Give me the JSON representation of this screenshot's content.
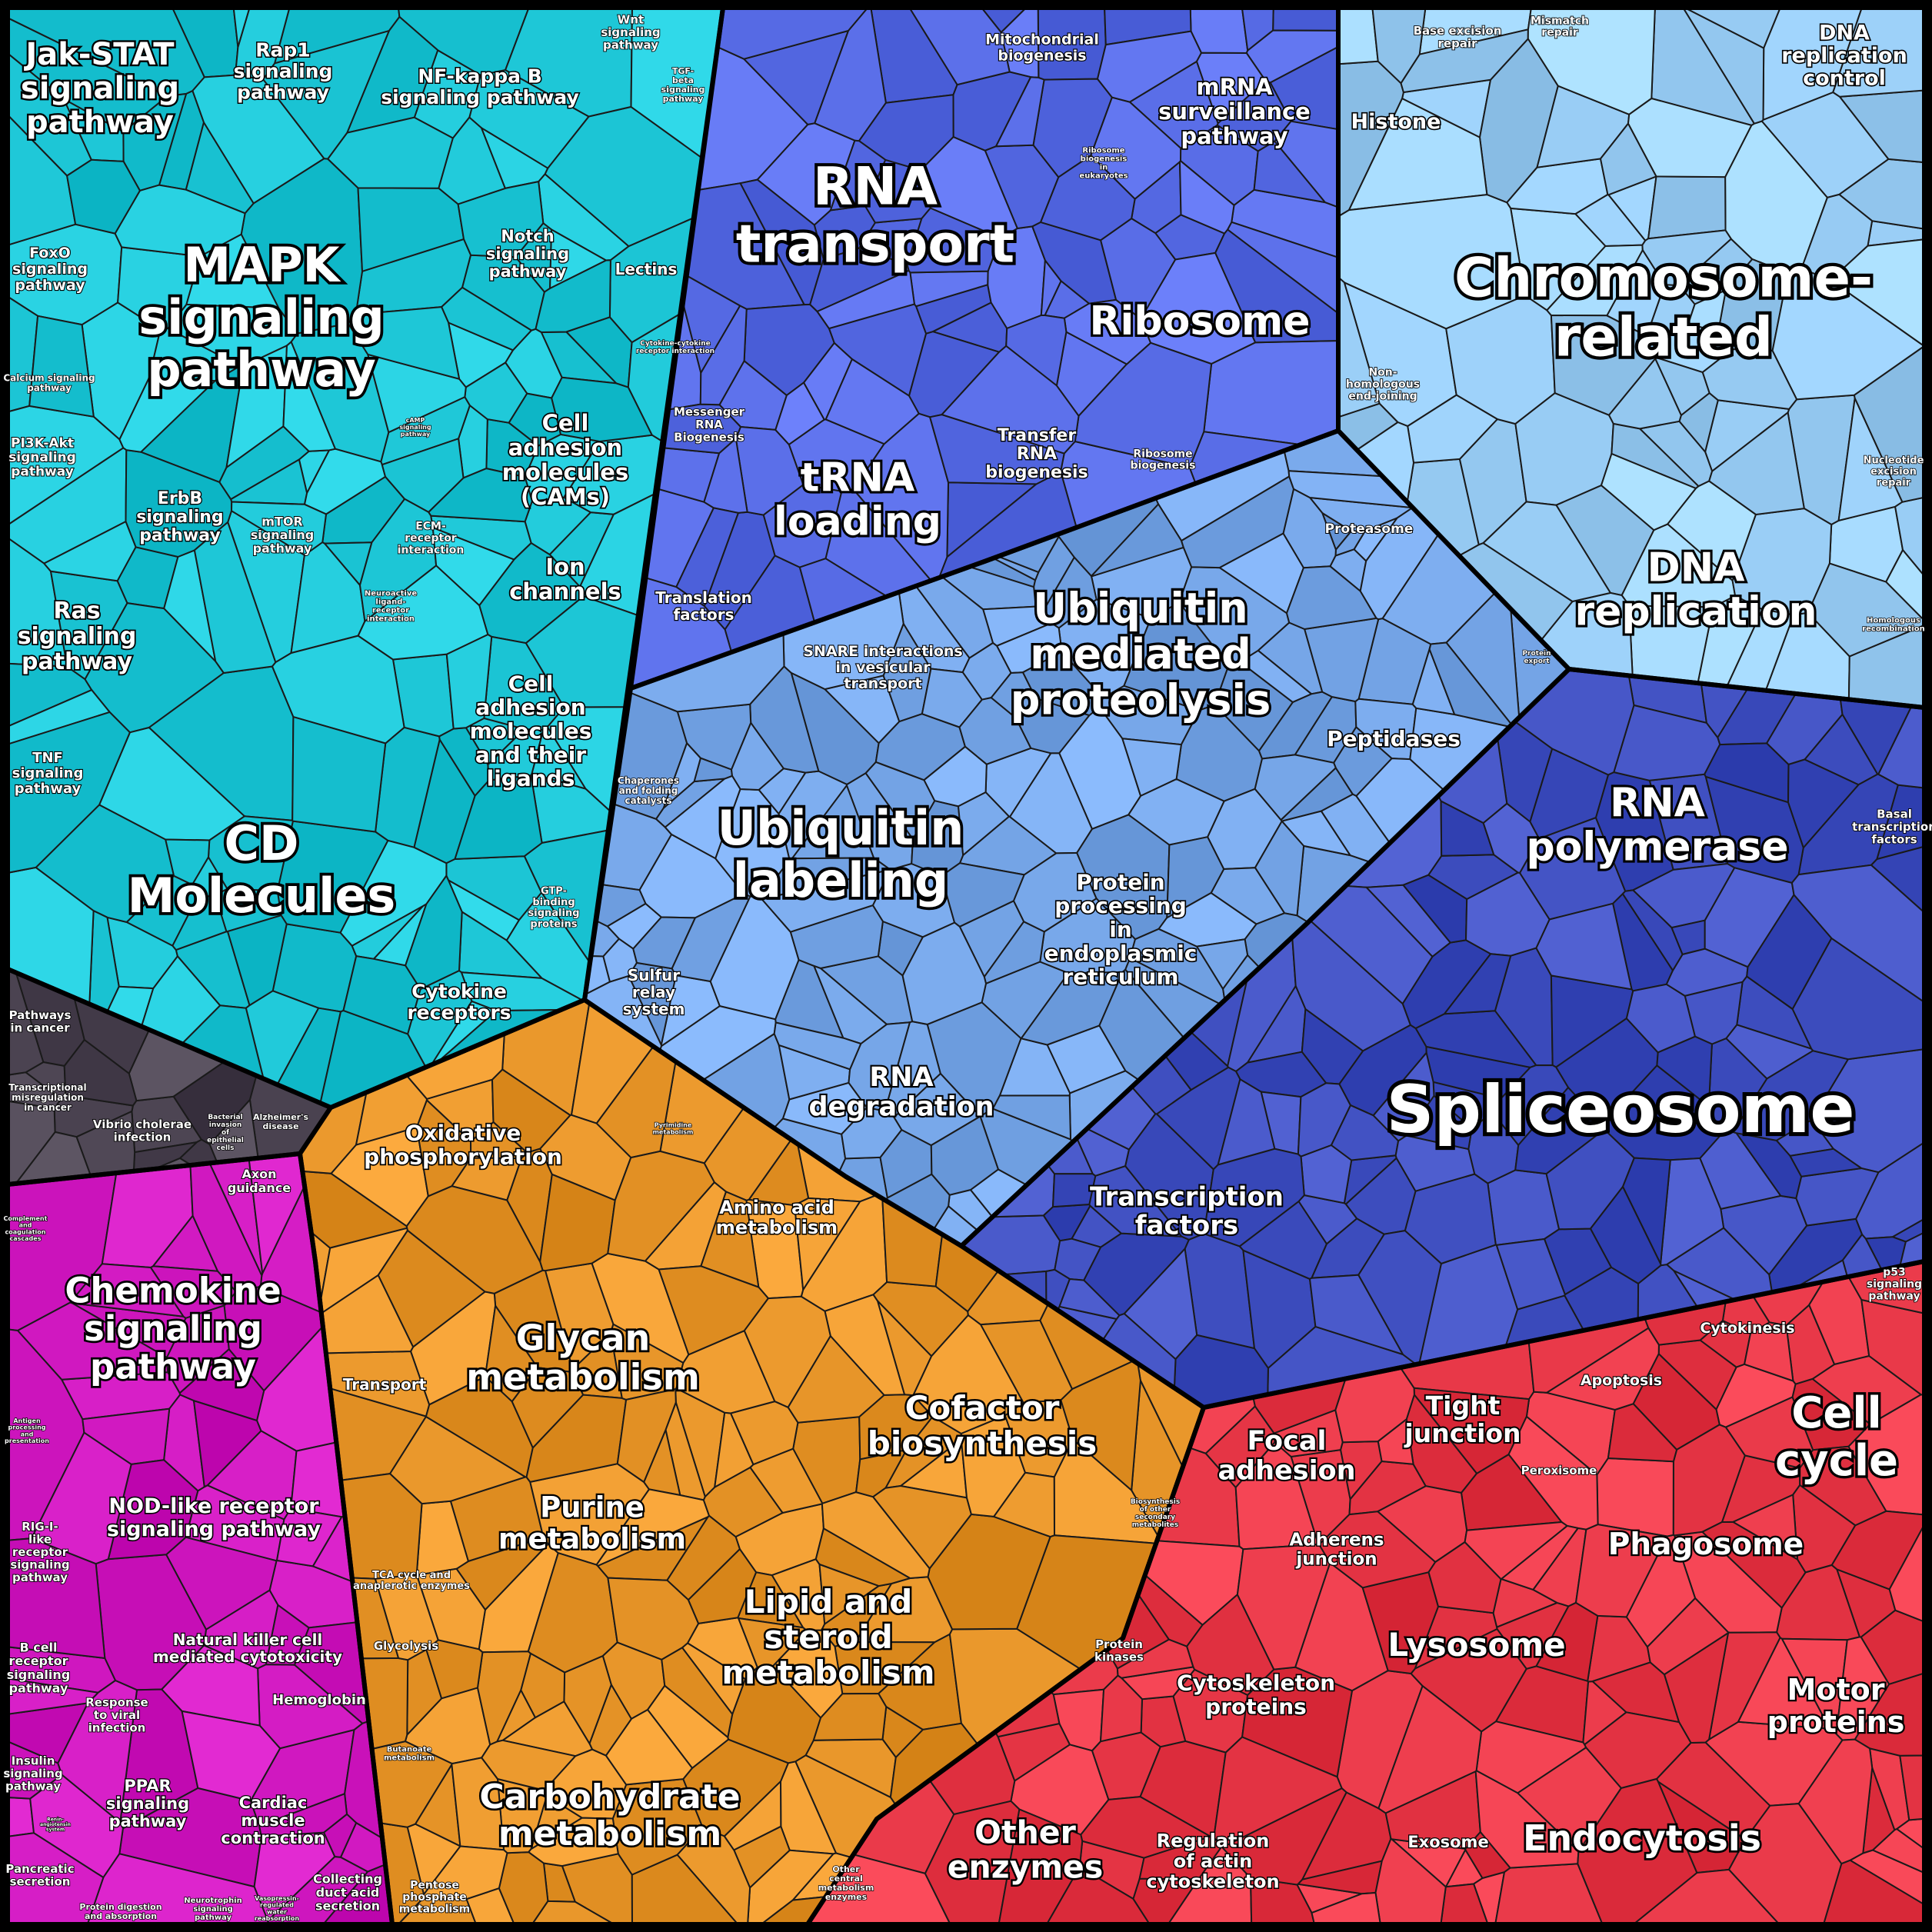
{
  "groups": [
    {
      "id": "signaling",
      "color": "#1fc8d8"
    },
    {
      "id": "rna",
      "color": "#5a6ee8"
    },
    {
      "id": "chromosome",
      "color": "#9cd0f8"
    },
    {
      "id": "protein",
      "color": "#78a8ea"
    },
    {
      "id": "transcription",
      "color": "#3f4fc0"
    },
    {
      "id": "disease",
      "color": "#4a4250"
    },
    {
      "id": "immune",
      "color": "#d018c0"
    },
    {
      "id": "metabolism",
      "color": "#e8962a"
    },
    {
      "id": "cellular",
      "color": "#e83848"
    }
  ],
  "labels": [
    {
      "id": "jak-stat",
      "text": "Jak-STAT\nsignaling\npathway"
    },
    {
      "id": "rap1",
      "text": "Rap1\nsignaling\npathway"
    },
    {
      "id": "nfkb",
      "text": "NF-kappa B\nsignaling pathway"
    },
    {
      "id": "wnt",
      "text": "Wnt\nsignaling\npathway"
    },
    {
      "id": "tgf",
      "text": "TGF-\nbeta\nsignaling\npathway"
    },
    {
      "id": "foxo",
      "text": "FoxO\nsignaling\npathway"
    },
    {
      "id": "mapk",
      "text": "MAPK\nsignaling\npathway"
    },
    {
      "id": "notch",
      "text": "Notch\nsignaling\npathway"
    },
    {
      "id": "lectins",
      "text": "Lectins"
    },
    {
      "id": "calcium",
      "text": "Calcium signaling\npathway"
    },
    {
      "id": "cytokine-cytokine",
      "text": "Cytokine-cytokine\nreceptor interaction"
    },
    {
      "id": "pi3k",
      "text": "PI3K-Akt\nsignaling\npathway"
    },
    {
      "id": "camp",
      "text": "cAMP\nsignaling\npathway"
    },
    {
      "id": "cams",
      "text": "Cell\nadhesion\nmolecules\n(CAMs)"
    },
    {
      "id": "erbb",
      "text": "ErbB\nsignaling\npathway"
    },
    {
      "id": "mtor",
      "text": "mTOR\nsignaling\npathway"
    },
    {
      "id": "ecm",
      "text": "ECM-\nreceptor\ninteraction"
    },
    {
      "id": "ras",
      "text": "Ras\nsignaling\npathway"
    },
    {
      "id": "ion",
      "text": "Ion\nchannels"
    },
    {
      "id": "neuroactive",
      "text": "Neuroactive\nligand-\nreceptor\ninteraction"
    },
    {
      "id": "cam-ligands",
      "text": "Cell\nadhesion\nmolecules\nand their\nligands"
    },
    {
      "id": "tnf",
      "text": "TNF\nsignaling\npathway"
    },
    {
      "id": "cd",
      "text": "CD\nMolecules"
    },
    {
      "id": "gtp",
      "text": "GTP-\nbinding\nsignaling\nproteins"
    },
    {
      "id": "cytokine-receptors",
      "text": "Cytokine\nreceptors"
    },
    {
      "id": "pathways-cancer",
      "text": "Pathways\nin cancer"
    },
    {
      "id": "transcriptional-misreg",
      "text": "Transcriptional\nmisregulation\nin cancer"
    },
    {
      "id": "cholerae",
      "text": "Vibrio cholerae\ninfection"
    },
    {
      "id": "bacterial",
      "text": "Bacterial\ninvasion\nof\nepithelial\ncells"
    },
    {
      "id": "alzheimer",
      "text": "Alzheimer's\ndisease"
    },
    {
      "id": "mito",
      "text": "Mitochondrial\nbiogenesis"
    },
    {
      "id": "rna-transport",
      "text": "RNA\ntransport"
    },
    {
      "id": "mrna-surv",
      "text": "mRNA\nsurveillance\npathway"
    },
    {
      "id": "ribo-bio-euk",
      "text": "Ribosome\nbiogenesis\nin\neukaryotes"
    },
    {
      "id": "ribosome",
      "text": "Ribosome"
    },
    {
      "id": "messenger",
      "text": "Messenger\nRNA\nBiogenesis"
    },
    {
      "id": "trna",
      "text": "tRNA\nloading"
    },
    {
      "id": "transfer-rna",
      "text": "Transfer\nRNA\nbiogenesis"
    },
    {
      "id": "ribo-bio",
      "text": "Ribosome\nbiogenesis"
    },
    {
      "id": "translation",
      "text": "Translation\nfactors"
    },
    {
      "id": "base-excision",
      "text": "Base excision\nrepair"
    },
    {
      "id": "mismatch",
      "text": "Mismatch\nrepair"
    },
    {
      "id": "dna-rep-control",
      "text": "DNA\nreplication\ncontrol"
    },
    {
      "id": "histone",
      "text": "Histone"
    },
    {
      "id": "chromosome-related",
      "text": "Chromosome-\nrelated"
    },
    {
      "id": "nhej",
      "text": "Non-\nhomologous\nend-joining"
    },
    {
      "id": "nucleotide-excision",
      "text": "Nucleotide\nexcision\nrepair"
    },
    {
      "id": "proteasome",
      "text": "Proteasome"
    },
    {
      "id": "dna-rep",
      "text": "DNA\nreplication"
    },
    {
      "id": "homologous",
      "text": "Homologous\nrecombination"
    },
    {
      "id": "protein-export",
      "text": "Protein\nexport"
    },
    {
      "id": "ubiq-prot",
      "text": "Ubiquitin\nmediated\nproteolysis"
    },
    {
      "id": "snare",
      "text": "SNARE interactions\nin vesicular\ntransport"
    },
    {
      "id": "peptidases",
      "text": "Peptidases"
    },
    {
      "id": "chaperones",
      "text": "Chaperones\nand folding\ncatalysts"
    },
    {
      "id": "ubiq-label",
      "text": "Ubiquitin\nlabeling"
    },
    {
      "id": "rna-pol",
      "text": "RNA\npolymerase"
    },
    {
      "id": "basal-tf",
      "text": "Basal\ntranscription\nfactors"
    },
    {
      "id": "protein-er",
      "text": "Protein\nprocessing\nin\nendoplasmic\nreticulum"
    },
    {
      "id": "sulfur",
      "text": "Sulfur\nrelay\nsystem"
    },
    {
      "id": "rna-deg",
      "text": "RNA\ndegradation"
    },
    {
      "id": "spliceosome",
      "text": "Spliceosome"
    },
    {
      "id": "oxphos",
      "text": "Oxidative\nphosphorylation"
    },
    {
      "id": "pyrimidine",
      "text": "Pyrimidine\nmetabolism"
    },
    {
      "id": "amino",
      "text": "Amino acid\nmetabolism"
    },
    {
      "id": "tf",
      "text": "Transcription\nfactors"
    },
    {
      "id": "glycan",
      "text": "Glycan\nmetabolism"
    },
    {
      "id": "transport",
      "text": "Transport"
    },
    {
      "id": "cofactor",
      "text": "Cofactor\nbiosynthesis"
    },
    {
      "id": "purine",
      "text": "Purine\nmetabolism"
    },
    {
      "id": "other-secondary",
      "text": "Biosynthesis\nof other\nsecondary\nmetabolites"
    },
    {
      "id": "tca",
      "text": "TCA cycle and\nanaplerotic enzymes"
    },
    {
      "id": "lipid",
      "text": "Lipid and\nsteroid\nmetabolism"
    },
    {
      "id": "glycolysis",
      "text": "Glycolysis"
    },
    {
      "id": "protein-kinases",
      "text": "Protein\nkinases"
    },
    {
      "id": "butanoate",
      "text": "Butanoate\nmetabolism"
    },
    {
      "id": "carbohydrate",
      "text": "Carbohydrate\nmetabolism"
    },
    {
      "id": "other-enzymes",
      "text": "Other\nenzymes"
    },
    {
      "id": "other-central",
      "text": "Other\ncentral\nmetabolism\nenzymes"
    },
    {
      "id": "pentose",
      "text": "Pentose\nphosphate\nmetabolism"
    },
    {
      "id": "axon",
      "text": "Axon\nguidance"
    },
    {
      "id": "complement",
      "text": "Complement\nand\ncoagulation\ncascades"
    },
    {
      "id": "chemokine",
      "text": "Chemokine\nsignaling\npathway"
    },
    {
      "id": "antigen",
      "text": "Antigen\nprocessing\nand\npresentation"
    },
    {
      "id": "nod",
      "text": "NOD-like receptor\nsignaling pathway"
    },
    {
      "id": "rig",
      "text": "RIG-I-\nlike\nreceptor\nsignaling\npathway"
    },
    {
      "id": "nk",
      "text": "Natural killer cell\nmediated cytotoxicity"
    },
    {
      "id": "bcell",
      "text": "B cell\nreceptor\nsignaling\npathway"
    },
    {
      "id": "viral",
      "text": "Response\nto viral\ninfection"
    },
    {
      "id": "hemoglobin",
      "text": "Hemoglobin"
    },
    {
      "id": "insulin",
      "text": "Insulin\nsignaling\npathway"
    },
    {
      "id": "renin",
      "text": "Renin-\nangiotensin\nsystem"
    },
    {
      "id": "ppar",
      "text": "PPAR\nsignaling\npathway"
    },
    {
      "id": "cardiac",
      "text": "Cardiac\nmuscle\ncontraction"
    },
    {
      "id": "pancreatic",
      "text": "Pancreatic\nsecretion"
    },
    {
      "id": "digestion",
      "text": "Protein digestion\nand absorption"
    },
    {
      "id": "neurotrophin",
      "text": "Neurotrophin\nsignaling\npathway"
    },
    {
      "id": "vasopressin",
      "text": "Vasopressin-\nregulated\nwater\nreabsorption"
    },
    {
      "id": "collecting",
      "text": "Collecting\nduct acid\nsecretion"
    },
    {
      "id": "p53",
      "text": "p53\nsignaling\npathway"
    },
    {
      "id": "cytokinesis",
      "text": "Cytokinesis"
    },
    {
      "id": "tight",
      "text": "Tight\njunction"
    },
    {
      "id": "focal",
      "text": "Focal\nadhesion"
    },
    {
      "id": "apoptosis",
      "text": "Apoptosis"
    },
    {
      "id": "cell-cycle",
      "text": "Cell\ncycle"
    },
    {
      "id": "peroxisome",
      "text": "Peroxisome"
    },
    {
      "id": "adherens",
      "text": "Adherens\njunction"
    },
    {
      "id": "phagosome",
      "text": "Phagosome"
    },
    {
      "id": "cytoskeleton",
      "text": "Cytoskeleton\nproteins"
    },
    {
      "id": "lysosome",
      "text": "Lysosome"
    },
    {
      "id": "motor",
      "text": "Motor\nproteins"
    },
    {
      "id": "actin",
      "text": "Regulation\nof actin\ncytoskeleton"
    },
    {
      "id": "exosome",
      "text": "Exosome"
    },
    {
      "id": "endocytosis",
      "text": "Endocytosis"
    }
  ]
}
